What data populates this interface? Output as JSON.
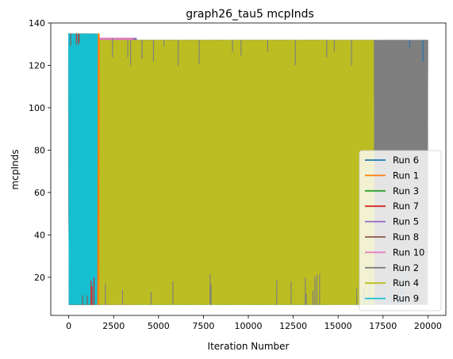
{
  "chart_data": {
    "type": "line",
    "title": "graph26_tau5 mcpInds",
    "xlabel": "Iteration Number",
    "ylabel": "mcpInds",
    "xlim": [
      -1000,
      21000
    ],
    "ylim": [
      2,
      140
    ],
    "x_ticks": [
      0,
      2500,
      5000,
      7500,
      10000,
      12500,
      15000,
      17500,
      20000
    ],
    "x_tick_labels": [
      "0",
      "2500",
      "5000",
      "7500",
      "10000",
      "12500",
      "15000",
      "17500",
      "20000"
    ],
    "y_ticks": [
      20,
      40,
      60,
      80,
      100,
      120,
      140
    ],
    "y_tick_labels": [
      "20",
      "40",
      "60",
      "80",
      "100",
      "120",
      "140"
    ],
    "grid": false,
    "legend_position": "lower-right",
    "value_band": {
      "low": 7,
      "high": 132
    },
    "series": [
      {
        "name": "Run 6",
        "color": "#1f77b4",
        "x_end": 20000,
        "high": 132,
        "low": 7
      },
      {
        "name": "Run 1",
        "color": "#ff7f0e",
        "x_end": 1700,
        "high": 135,
        "low": 7
      },
      {
        "name": "Run 3",
        "color": "#2ca02c",
        "x_end": 14500,
        "high": 132,
        "low": 7
      },
      {
        "name": "Run 7",
        "color": "#d62728",
        "x_end": 1500,
        "high": 135,
        "low": 7
      },
      {
        "name": "Run 5",
        "color": "#9467bd",
        "x_end": 3800,
        "high": 133,
        "low": 7
      },
      {
        "name": "Run 8",
        "color": "#8c564b",
        "x_end": 1200,
        "high": 135,
        "low": 7
      },
      {
        "name": "Run 10",
        "color": "#e377c2",
        "x_end": 3600,
        "high": 133,
        "low": 7
      },
      {
        "name": "Run 2",
        "color": "#7f7f7f",
        "x_end": 20000,
        "high": 132,
        "low": 7
      },
      {
        "name": "Run 4",
        "color": "#bcbd22",
        "x_end": 17000,
        "high": 132,
        "low": 7
      },
      {
        "name": "Run 9",
        "color": "#17becf",
        "x_end": 1600,
        "high": 135,
        "low": 7
      }
    ]
  }
}
